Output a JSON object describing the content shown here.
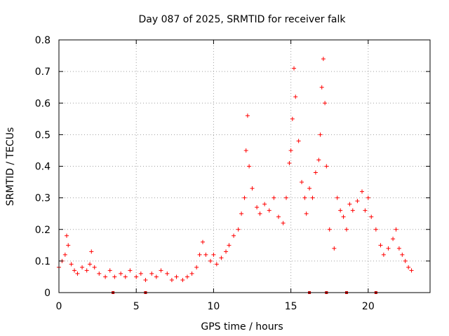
{
  "chart_data": {
    "type": "scatter",
    "title": "Day 087 of 2025, SRMTID for receiver falk",
    "xlabel": "GPS time / hours",
    "ylabel": "SRMTID / TECUs",
    "xlim": [
      0,
      24
    ],
    "ylim": [
      0,
      0.8
    ],
    "xticks": [
      0,
      5,
      10,
      15,
      20
    ],
    "yticks": [
      0,
      0.1,
      0.2,
      0.3,
      0.4,
      0.5,
      0.6,
      0.7,
      0.8
    ],
    "xtick_labels": [
      "0",
      "5",
      "10",
      "15",
      "20"
    ],
    "ytick_labels": [
      "0",
      "0.1",
      "0.2",
      "0.3",
      "0.4",
      "0.5",
      "0.6",
      "0.7",
      "0.8"
    ],
    "grid": true,
    "marker": "+",
    "series_color": "#ff0000",
    "series": [
      {
        "name": "SRMTID",
        "x": [
          0.0,
          0.2,
          0.4,
          0.5,
          0.6,
          0.8,
          1.0,
          1.2,
          1.5,
          1.8,
          2.0,
          2.1,
          2.3,
          2.6,
          3.0,
          3.3,
          3.6,
          4.0,
          4.3,
          4.6,
          5.0,
          5.3,
          5.6,
          6.0,
          6.3,
          6.6,
          7.0,
          7.3,
          7.6,
          8.0,
          8.3,
          8.6,
          8.9,
          9.1,
          9.3,
          9.5,
          9.8,
          10.0,
          10.2,
          10.5,
          10.8,
          11.0,
          11.3,
          11.6,
          11.8,
          12.0,
          12.1,
          12.2,
          12.3,
          12.5,
          12.8,
          13.0,
          13.3,
          13.6,
          13.9,
          14.2,
          14.5,
          14.7,
          14.9,
          15.0,
          15.1,
          15.2,
          15.3,
          15.5,
          15.7,
          15.9,
          16.0,
          16.2,
          16.4,
          16.6,
          16.8,
          16.9,
          17.0,
          17.1,
          17.2,
          17.3,
          17.5,
          17.8,
          18.0,
          18.2,
          18.4,
          18.6,
          18.8,
          19.0,
          19.3,
          19.6,
          19.8,
          20.0,
          20.2,
          20.5,
          20.8,
          21.0,
          21.3,
          21.6,
          21.8,
          22.0,
          22.2,
          22.4,
          22.6,
          22.8
        ],
        "y": [
          0.08,
          0.1,
          0.12,
          0.18,
          0.15,
          0.09,
          0.07,
          0.06,
          0.08,
          0.07,
          0.09,
          0.13,
          0.08,
          0.06,
          0.05,
          0.07,
          0.05,
          0.06,
          0.05,
          0.07,
          0.05,
          0.06,
          0.04,
          0.06,
          0.05,
          0.07,
          0.06,
          0.04,
          0.05,
          0.04,
          0.05,
          0.06,
          0.08,
          0.12,
          0.16,
          0.12,
          0.1,
          0.12,
          0.09,
          0.11,
          0.13,
          0.15,
          0.18,
          0.2,
          0.25,
          0.3,
          0.45,
          0.56,
          0.4,
          0.33,
          0.27,
          0.25,
          0.28,
          0.26,
          0.3,
          0.24,
          0.22,
          0.3,
          0.41,
          0.45,
          0.55,
          0.71,
          0.62,
          0.48,
          0.35,
          0.3,
          0.25,
          0.33,
          0.3,
          0.38,
          0.42,
          0.5,
          0.65,
          0.74,
          0.6,
          0.4,
          0.2,
          0.14,
          0.3,
          0.26,
          0.24,
          0.2,
          0.28,
          0.26,
          0.29,
          0.32,
          0.26,
          0.3,
          0.24,
          0.2,
          0.15,
          0.12,
          0.14,
          0.17,
          0.2,
          0.14,
          0.12,
          0.1,
          0.08,
          0.07
        ]
      }
    ],
    "rug_x": [
      3.5,
      5.6,
      16.2,
      17.3,
      18.6,
      20.5
    ]
  }
}
